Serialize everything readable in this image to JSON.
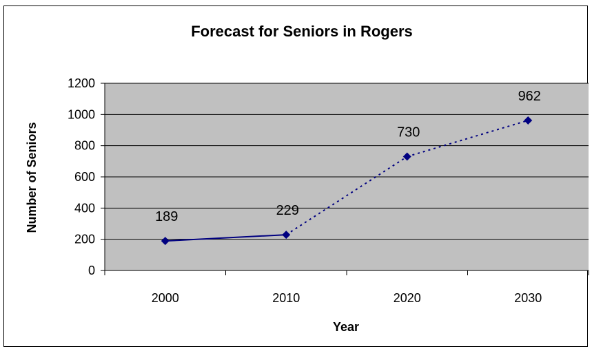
{
  "chart_data": {
    "type": "line",
    "title": "Forecast for Seniors in Rogers",
    "xlabel": "Year",
    "ylabel": "Number of Seniors",
    "categories": [
      "2000",
      "2010",
      "2020",
      "2030"
    ],
    "values": [
      189,
      229,
      730,
      962
    ],
    "data_labels": [
      "189",
      "229",
      "730",
      "962"
    ],
    "line_style": [
      "solid",
      "dotted",
      "dotted"
    ],
    "ylim": [
      0,
      1200
    ],
    "yticks": [
      0,
      200,
      400,
      600,
      800,
      1000,
      1200
    ],
    "ytick_labels": [
      "0",
      "200",
      "400",
      "600",
      "800",
      "1000",
      "1200"
    ],
    "grid": true,
    "legend": "none",
    "colors": {
      "plot_area": "#c0c0c0",
      "series": "#000080",
      "gridline": "#000000"
    }
  }
}
